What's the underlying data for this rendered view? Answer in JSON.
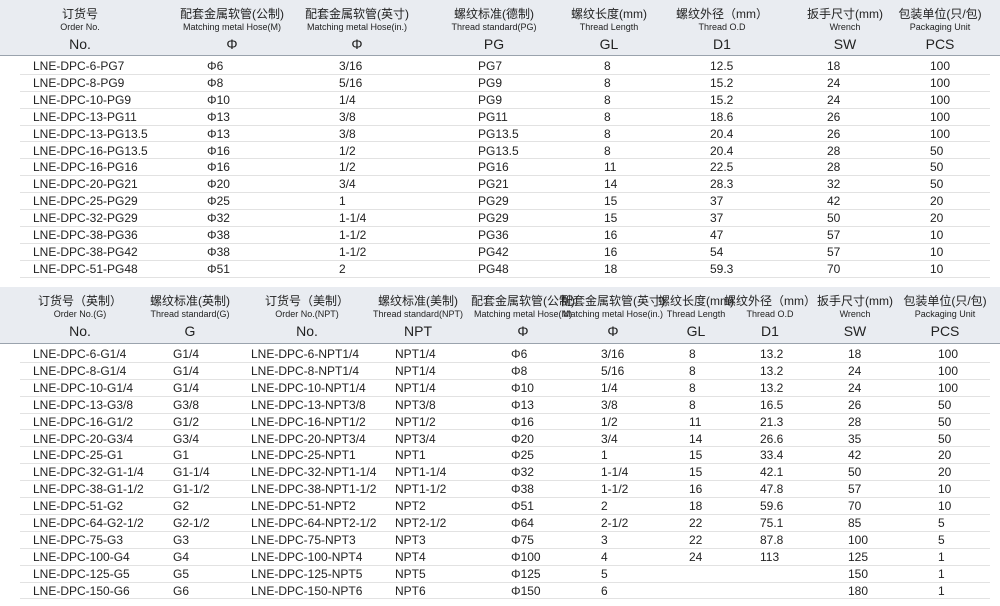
{
  "tables": [
    {
      "headers": [
        [
          "订货号",
          "Order No.",
          "No."
        ],
        [
          "配套金属软管(公制)",
          "Matching metal Hose(M)",
          "Φ"
        ],
        [
          "配套金属软管(英寸)",
          "Matching metal Hose(in.)",
          "Φ"
        ],
        [
          "螺纹标准(德制)",
          "Thread standard(PG)",
          "PG"
        ],
        [
          "螺纹长度(mm)",
          "Thread  Length",
          "GL"
        ],
        [
          "螺纹外径（mm）",
          "Thread O.D",
          "D1"
        ],
        [
          "扳手尺寸(mm)",
          "Wrench",
          "SW"
        ],
        [
          "包装单位(只/包)",
          "Packaging Unit",
          "PCS"
        ]
      ],
      "rows": [
        [
          "LNE-DPC-6-PG7",
          "Φ6",
          "3/16",
          "PG7",
          8,
          12.5,
          18,
          100
        ],
        [
          "LNE-DPC-8-PG9",
          "Φ8",
          "5/16",
          "PG9",
          8,
          15.2,
          24,
          100
        ],
        [
          "LNE-DPC-10-PG9",
          "Φ10",
          "1/4",
          "PG9",
          8,
          15.2,
          24,
          100
        ],
        [
          "LNE-DPC-13-PG11",
          "Φ13",
          "3/8",
          "PG11",
          8,
          18.6,
          26,
          100
        ],
        [
          "LNE-DPC-13-PG13.5",
          "Φ13",
          "3/8",
          "PG13.5",
          8,
          20.4,
          26,
          100
        ],
        [
          "LNE-DPC-16-PG13.5",
          "Φ16",
          "1/2",
          "PG13.5",
          8,
          20.4,
          28,
          50
        ],
        [
          "LNE-DPC-16-PG16",
          "Φ16",
          "1/2",
          "PG16",
          11,
          22.5,
          28,
          50
        ],
        [
          "LNE-DPC-20-PG21",
          "Φ20",
          "3/4",
          "PG21",
          14,
          28.3,
          32,
          50
        ],
        [
          "LNE-DPC-25-PG29",
          "Φ25",
          "1",
          "PG29",
          15,
          37,
          42,
          20
        ],
        [
          "LNE-DPC-32-PG29",
          "Φ32",
          "1-1/4",
          "PG29",
          15,
          37,
          50,
          20
        ],
        [
          "LNE-DPC-38-PG36",
          "Φ38",
          "1-1/2",
          "PG36",
          16,
          47,
          57,
          10
        ],
        [
          "LNE-DPC-38-PG42",
          "Φ38",
          "1-1/2",
          "PG42",
          16,
          54,
          57,
          10
        ],
        [
          "LNE-DPC-51-PG48",
          "Φ51",
          "2",
          "PG48",
          18,
          59.3,
          70,
          10
        ]
      ]
    },
    {
      "headers": [
        [
          "订货号（英制）",
          "Order No.(G)",
          "No."
        ],
        [
          "螺纹标准(英制)",
          "Thread standard(G)",
          "G"
        ],
        [
          "订货号（美制）",
          "Order No.(NPT)",
          "No."
        ],
        [
          "螺纹标准(美制)",
          "Thread standard(NPT)",
          "NPT"
        ],
        [
          "配套金属软管(公制)",
          "Matching metal Hose(M)",
          "Φ"
        ],
        [
          "配套金属软管(英寸)",
          "Matching metal Hose(in.)",
          "Φ"
        ],
        [
          "螺纹长度(mm)",
          "Thread  Length",
          "GL"
        ],
        [
          "螺纹外径（mm）",
          "Thread O.D",
          "D1"
        ],
        [
          "扳手尺寸(mm)",
          "Wrench",
          "SW"
        ],
        [
          "包装单位(只/包)",
          "Packaging Unit",
          "PCS"
        ]
      ],
      "rows": [
        [
          "LNE-DPC-6-G1/4",
          "G1/4",
          "LNE-DPC-6-NPT1/4",
          "NPT1/4",
          "Φ6",
          "3/16",
          8,
          13.2,
          18,
          100
        ],
        [
          "LNE-DPC-8-G1/4",
          "G1/4",
          "LNE-DPC-8-NPT1/4",
          "NPT1/4",
          "Φ8",
          "5/16",
          8,
          13.2,
          24,
          100
        ],
        [
          "LNE-DPC-10-G1/4",
          "G1/4",
          "LNE-DPC-10-NPT1/4",
          "NPT1/4",
          "Φ10",
          "1/4",
          8,
          13.2,
          24,
          100
        ],
        [
          "LNE-DPC-13-G3/8",
          "G3/8",
          "LNE-DPC-13-NPT3/8",
          "NPT3/8",
          "Φ13",
          "3/8",
          8,
          16.5,
          26,
          50
        ],
        [
          "LNE-DPC-16-G1/2",
          "G1/2",
          "LNE-DPC-16-NPT1/2",
          "NPT1/2",
          "Φ16",
          "1/2",
          11,
          21.3,
          28,
          50
        ],
        [
          "LNE-DPC-20-G3/4",
          "G3/4",
          "LNE-DPC-20-NPT3/4",
          "NPT3/4",
          "Φ20",
          "3/4",
          14,
          26.6,
          35,
          50
        ],
        [
          "LNE-DPC-25-G1",
          "G1",
          "LNE-DPC-25-NPT1",
          "NPT1",
          "Φ25",
          "1",
          15,
          33.4,
          42,
          20
        ],
        [
          "LNE-DPC-32-G1-1/4",
          "G1-1/4",
          "LNE-DPC-32-NPT1-1/4",
          "NPT1-1/4",
          "Φ32",
          "1-1/4",
          15,
          42.1,
          50,
          20
        ],
        [
          "LNE-DPC-38-G1-1/2",
          "G1-1/2",
          "LNE-DPC-38-NPT1-1/2",
          "NPT1-1/2",
          "Φ38",
          "1-1/2",
          16,
          47.8,
          57,
          10
        ],
        [
          "LNE-DPC-51-G2",
          "G2",
          "LNE-DPC-51-NPT2",
          "NPT2",
          "Φ51",
          "2",
          18,
          59.6,
          70,
          10
        ],
        [
          "LNE-DPC-64-G2-1/2",
          "G2-1/2",
          "LNE-DPC-64-NPT2-1/2",
          "NPT2-1/2",
          "Φ64",
          "2-1/2",
          22,
          75.1,
          85,
          5
        ],
        [
          "LNE-DPC-75-G3",
          "G3",
          "LNE-DPC-75-NPT3",
          "NPT3",
          "Φ75",
          "3",
          22,
          87.8,
          100,
          5
        ],
        [
          "LNE-DPC-100-G4",
          "G4",
          "LNE-DPC-100-NPT4",
          "NPT4",
          "Φ100",
          "4",
          24,
          113,
          125,
          1
        ],
        [
          "LNE-DPC-125-G5",
          "G5",
          "LNE-DPC-125-NPT5",
          "NPT5",
          "Φ125",
          "5",
          null,
          null,
          150,
          1
        ],
        [
          "LNE-DPC-150-G6",
          "G6",
          "LNE-DPC-150-NPT6",
          "NPT6",
          "Φ150",
          "6",
          null,
          null,
          180,
          1
        ]
      ]
    }
  ]
}
